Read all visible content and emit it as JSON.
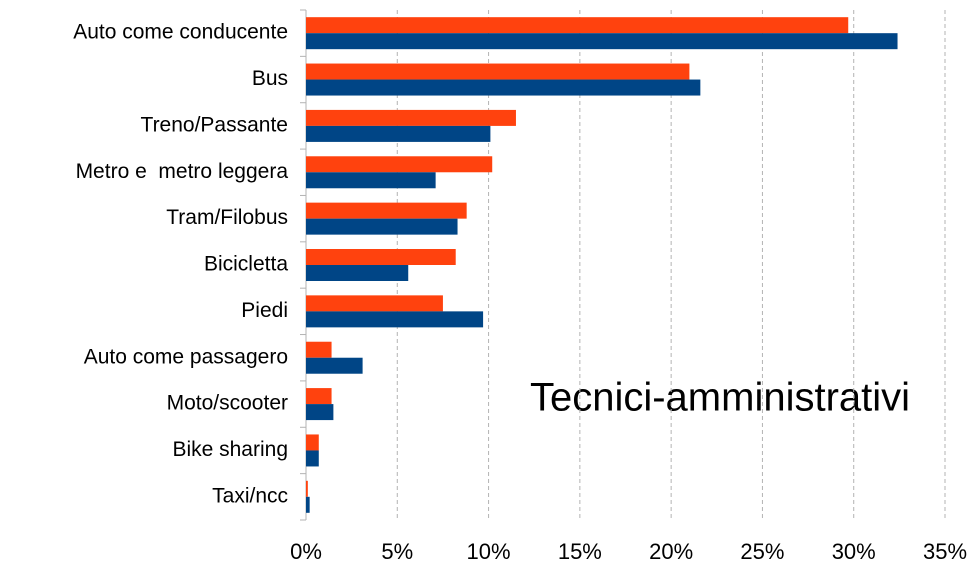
{
  "chart_data": {
    "type": "bar",
    "orientation": "horizontal",
    "annotation": "Tecnici-amministrativi",
    "categories": [
      "Auto come conducente",
      "Bus",
      "Treno/Passante",
      "Metro e  metro leggera",
      "Tram/Filobus",
      "Bicicletta",
      "Piedi",
      "Auto come passagero",
      "Moto/scooter",
      "Bike sharing",
      "Taxi/ncc"
    ],
    "series": [
      {
        "color": "#ff420e",
        "values": [
          29.7,
          21.0,
          11.5,
          10.2,
          8.8,
          8.2,
          7.5,
          1.4,
          1.4,
          0.7,
          0.1
        ]
      },
      {
        "color": "#004586",
        "values": [
          32.4,
          21.6,
          10.1,
          7.1,
          8.3,
          5.6,
          9.7,
          3.1,
          1.5,
          0.7,
          0.2
        ]
      }
    ],
    "xlim": [
      0,
      35
    ],
    "xticks": [
      {
        "value": 0,
        "label": "0%"
      },
      {
        "value": 5,
        "label": "5%"
      },
      {
        "value": 10,
        "label": "10%"
      },
      {
        "value": 15,
        "label": "15%"
      },
      {
        "value": 20,
        "label": "20%"
      },
      {
        "value": 25,
        "label": "25%"
      },
      {
        "value": 30,
        "label": "30%"
      },
      {
        "value": 35,
        "label": "35%"
      }
    ],
    "grid": true
  }
}
